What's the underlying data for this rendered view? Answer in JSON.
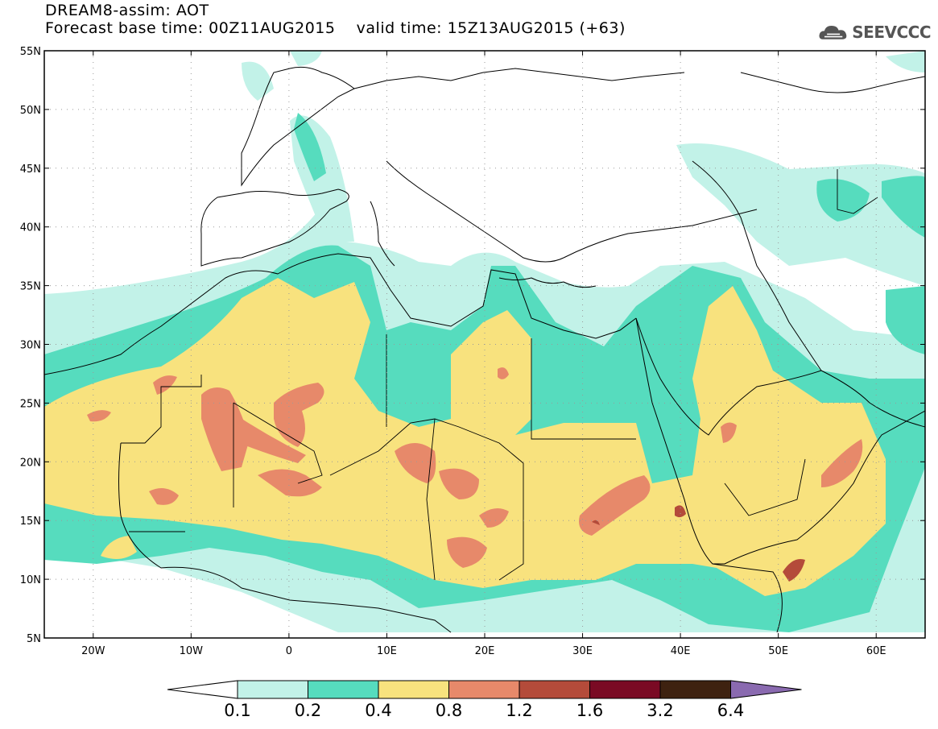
{
  "title": {
    "line1": "DREAM8-assim: AOT",
    "base_label": "Forecast base time: 00Z11AUG2015",
    "valid_label": "valid time: 15Z13AUG2015 (+63)"
  },
  "logo": {
    "text": "SEEVCCC",
    "icon": "cloud-icon",
    "color": "#555555"
  },
  "map": {
    "lon_range": [
      -25,
      65
    ],
    "lat_range": [
      5,
      55
    ],
    "lat_ticks": [
      {
        "value": 55,
        "label": "55N"
      },
      {
        "value": 50,
        "label": "50N"
      },
      {
        "value": 45,
        "label": "45N"
      },
      {
        "value": 40,
        "label": "40N"
      },
      {
        "value": 35,
        "label": "35N"
      },
      {
        "value": 30,
        "label": "30N"
      },
      {
        "value": 25,
        "label": "25N"
      },
      {
        "value": 20,
        "label": "20N"
      },
      {
        "value": 15,
        "label": "15N"
      },
      {
        "value": 10,
        "label": "10N"
      },
      {
        "value": 5,
        "label": "5N"
      }
    ],
    "lon_ticks": [
      {
        "value": -20,
        "label": "20W"
      },
      {
        "value": -10,
        "label": "10W"
      },
      {
        "value": 0,
        "label": "0"
      },
      {
        "value": 10,
        "label": "10E"
      },
      {
        "value": 20,
        "label": "20E"
      },
      {
        "value": 30,
        "label": "30E"
      },
      {
        "value": 40,
        "label": "40E"
      },
      {
        "value": 50,
        "label": "50E"
      },
      {
        "value": 60,
        "label": "60E"
      }
    ],
    "grid": "dotted"
  },
  "colorbar": {
    "labels": [
      "0.1",
      "0.2",
      "0.4",
      "0.8",
      "1.2",
      "1.6",
      "3.2",
      "6.4"
    ],
    "colors": [
      "#ffffff",
      "#c2f2e8",
      "#56dcbe",
      "#f8e27e",
      "#e7896a",
      "#b44b3a",
      "#7a0a24",
      "#3e2210",
      "#8a6ab0"
    ]
  },
  "levels": {
    "c1": "#c2f2e8",
    "c2": "#56dcbe",
    "c3": "#f8e27e",
    "c4": "#e7896a",
    "c5": "#b44b3a"
  }
}
